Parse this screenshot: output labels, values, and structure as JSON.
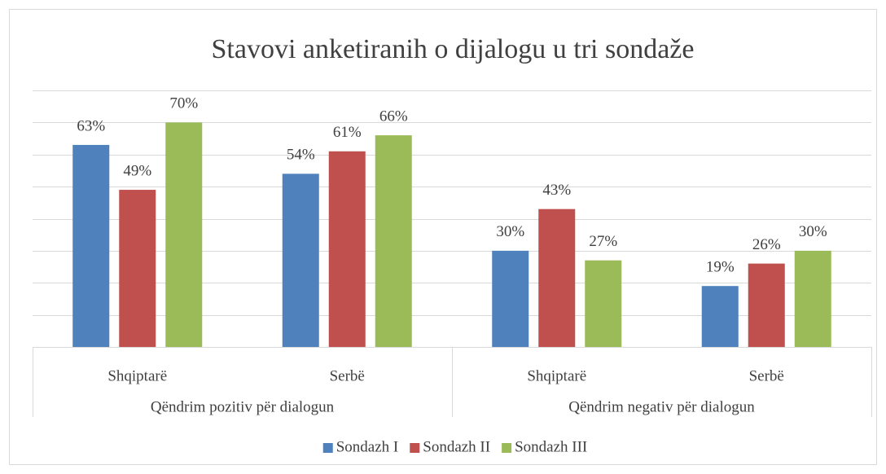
{
  "chart_data": {
    "type": "bar",
    "title": "Stavovi anketiranih o dijalogu u tri sondaže",
    "groups": [
      {
        "name": "Qëndrim pozitiv për dialogun",
        "categories": [
          "Shqiptarë",
          "Serbë"
        ]
      },
      {
        "name": "Qëndrim negativ për dialogun",
        "categories": [
          "Shqiptarë",
          "Serbë"
        ]
      }
    ],
    "series": [
      {
        "name": "Sondazh I",
        "color": "#4f81bd",
        "values": [
          63,
          54,
          30,
          19
        ],
        "value_labels": [
          "63%",
          "54%",
          "30%",
          "19%"
        ]
      },
      {
        "name": "Sondazh II",
        "color": "#c0504d",
        "values": [
          49,
          61,
          43,
          26
        ],
        "value_labels": [
          "49%",
          "61%",
          "43%",
          "26%"
        ]
      },
      {
        "name": "Sondazh III",
        "color": "#9bbb59",
        "values": [
          70,
          66,
          27,
          30
        ],
        "value_labels": [
          "70%",
          "66%",
          "27%",
          "30%"
        ]
      }
    ],
    "ylim": [
      0,
      80
    ],
    "yticks": [
      0,
      10,
      20,
      30,
      40,
      50,
      60,
      70,
      80
    ],
    "grid": true,
    "legend": "bottom"
  }
}
